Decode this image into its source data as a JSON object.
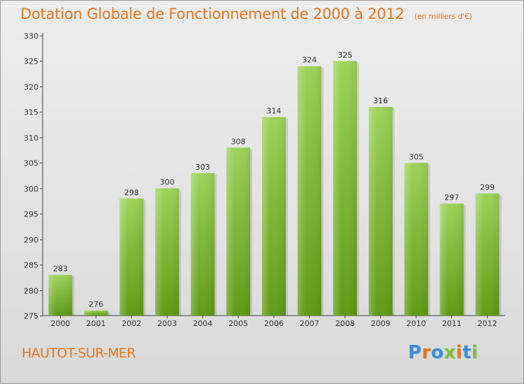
{
  "title": "Dotation Globale de Fonctionnement de 2000 à 2012",
  "unit": "(en milliers d'€)",
  "commune": "HAUTOT-SUR-MER",
  "brand": "Proxiti",
  "colors": {
    "title": "#e8761e",
    "bar_top": "#9ed35a",
    "bar_bottom": "#5f9a14",
    "brand_letters": [
      "#3b8fd8",
      "#e8761e",
      "#3b8fd8",
      "#7cc03a",
      "#e8761e",
      "#3b8fd8",
      "#7cc03a"
    ]
  },
  "chart_data": {
    "type": "bar",
    "title": "Dotation Globale de Fonctionnement de 2000 à 2012",
    "ylabel": "",
    "xlabel": "",
    "ylim": [
      275,
      330
    ],
    "yticks": [
      275,
      280,
      285,
      290,
      295,
      300,
      305,
      310,
      315,
      320,
      325,
      330
    ],
    "grid": false,
    "categories": [
      "2000",
      "2001",
      "2002",
      "2003",
      "2004",
      "2005",
      "2006",
      "2007",
      "2008",
      "2009",
      "2010",
      "2011",
      "2012"
    ],
    "values": [
      283,
      276,
      298,
      300,
      303,
      308,
      314,
      324,
      325,
      316,
      305,
      297,
      299
    ]
  }
}
